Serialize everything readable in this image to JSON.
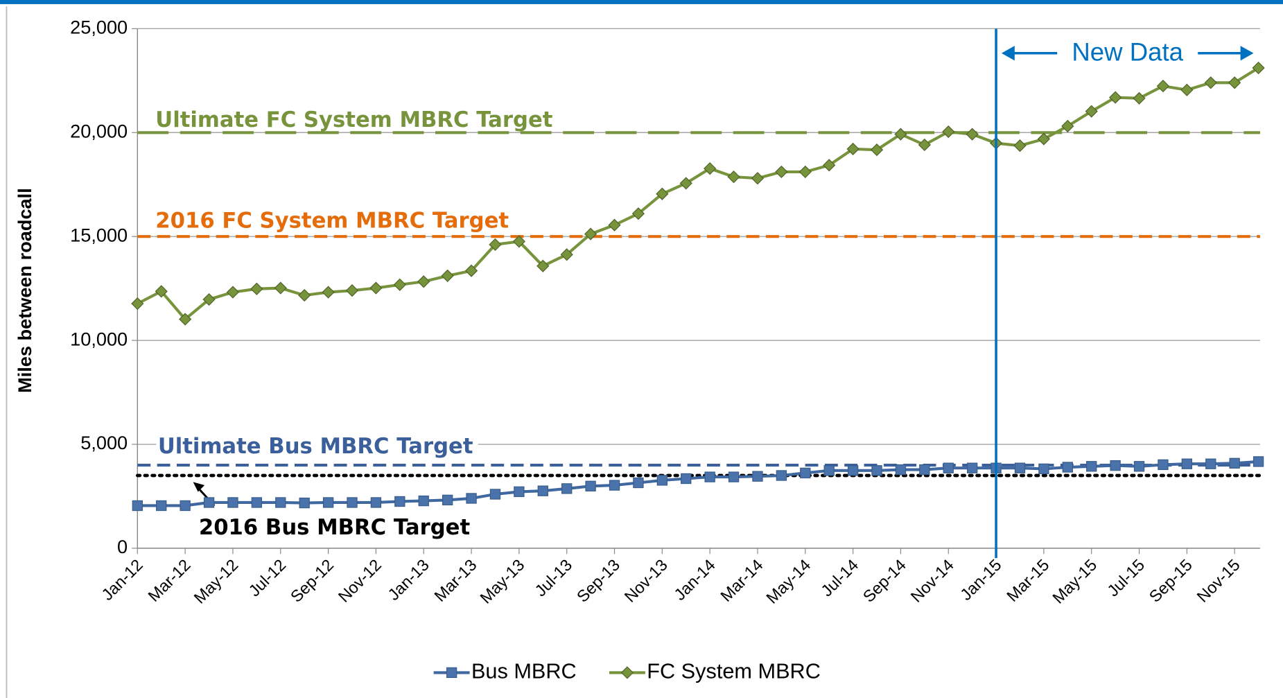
{
  "chart_data": {
    "type": "line",
    "y_label": "Miles between roadcall",
    "categories": [
      "Jan-12",
      null,
      "Mar-12",
      null,
      "May-12",
      null,
      "Jul-12",
      null,
      "Sep-12",
      null,
      "Nov-12",
      null,
      "Jan-13",
      null,
      "Mar-13",
      null,
      "May-13",
      null,
      "Jul-13",
      null,
      "Sep-13",
      null,
      "Nov-13",
      null,
      "Jan-14",
      null,
      "Mar-14",
      null,
      "May-14",
      null,
      "Jul-14",
      null,
      "Sep-14",
      null,
      "Nov-14",
      null,
      "Jan-15",
      null,
      "Mar-15",
      null,
      "May-15",
      null,
      "Jul-15",
      null,
      "Sep-15",
      null,
      "Nov-15",
      null
    ],
    "series": [
      {
        "name": "Bus MBRC",
        "color": "#3f67a0",
        "marker": "square",
        "values": [
          2050,
          2050,
          2050,
          2200,
          2200,
          2200,
          2200,
          2180,
          2200,
          2200,
          2200,
          2250,
          2280,
          2320,
          2400,
          2600,
          2720,
          2760,
          2870,
          2990,
          3030,
          3150,
          3270,
          3350,
          3430,
          3430,
          3460,
          3500,
          3620,
          3740,
          3740,
          3740,
          3780,
          3780,
          3860,
          3860,
          3860,
          3860,
          3820,
          3900,
          3940,
          3980,
          3940,
          4020,
          4060,
          4060,
          4090,
          4170
        ]
      },
      {
        "name": "FC System MBRC",
        "color": "#77933c",
        "marker": "diamond",
        "values": [
          11770,
          12360,
          11020,
          11970,
          12320,
          12480,
          12520,
          12170,
          12320,
          12400,
          12520,
          12680,
          12830,
          13110,
          13350,
          14610,
          14760,
          13580,
          14130,
          15120,
          15550,
          16100,
          17050,
          17560,
          18270,
          17870,
          17800,
          18110,
          18110,
          18430,
          19210,
          19170,
          19920,
          19410,
          20040,
          19920,
          19490,
          19370,
          19690,
          20310,
          21020,
          21690,
          21650,
          22240,
          22050,
          22400,
          22400,
          23110
        ]
      }
    ],
    "targets": [
      {
        "label": "Ultimate FC System MBRC Target",
        "value": 20000,
        "color": "#77933c",
        "style": "long-dash"
      },
      {
        "label": "2016 FC System MBRC Target",
        "value": 15000,
        "color": "#e46c0a",
        "style": "dash"
      },
      {
        "label": "Ultimate Bus MBRC Target",
        "value": 4000,
        "color": "#3a5f9a",
        "style": "dash"
      },
      {
        "label": "2016 Bus MBRC Target",
        "value": 3500,
        "color": "#000000",
        "style": "dot"
      }
    ],
    "annotation": {
      "text": "New Data",
      "x": "Jan-15",
      "color": "#0070c0"
    },
    "ylim": [
      0,
      25000
    ],
    "yticks": [
      0,
      {
        "value": 5000,
        "label": "5,000"
      },
      {
        "value": 10000,
        "label": "10,000"
      },
      {
        "value": 15000,
        "label": "15,000"
      },
      {
        "value": 20000,
        "label": "20,000"
      },
      {
        "value": 25000,
        "label": "25,000"
      }
    ],
    "grid": true,
    "legend": "bottom"
  }
}
